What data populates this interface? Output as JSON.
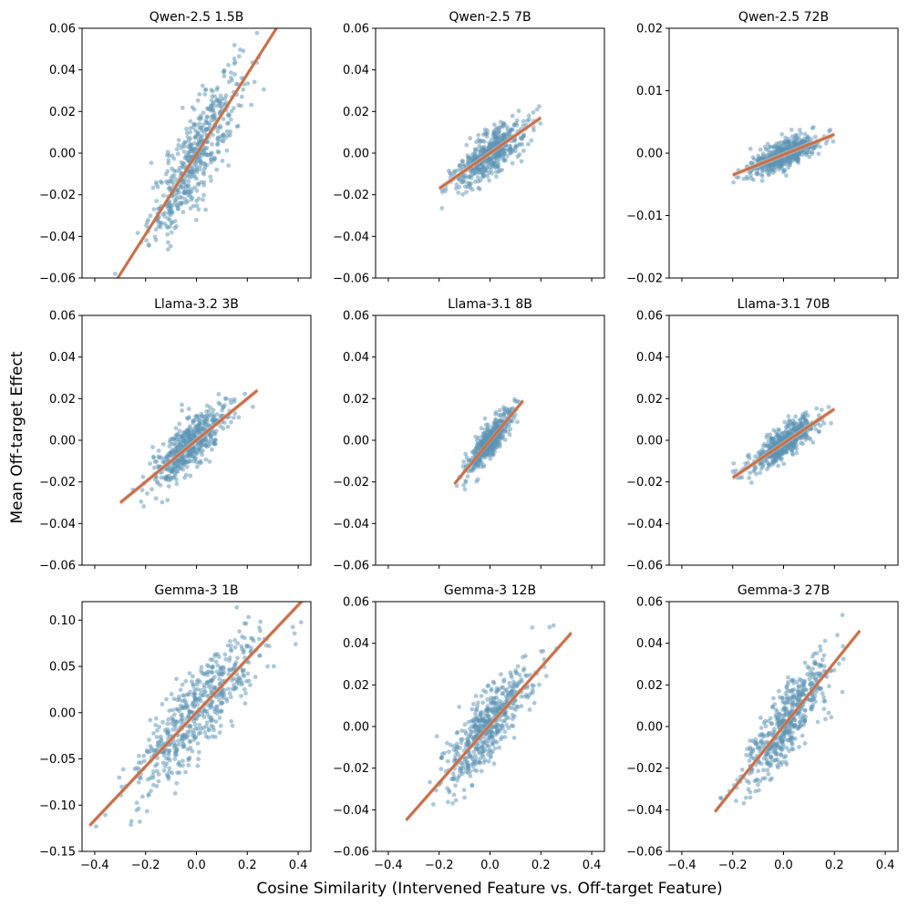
{
  "figure": {
    "xlabel": "Cosine Similarity (Intervened Feature vs. Off-target Feature)",
    "ylabel": "Mean Off-target Effect",
    "point_color": "#5b93b3",
    "line_color": "#c8704a",
    "band_color": "#e8c4b4"
  },
  "chart_data": [
    {
      "type": "scatter",
      "title": "Qwen-2.5 1.5B",
      "xlim": [
        -0.45,
        0.45
      ],
      "ylim": [
        -0.06,
        0.06
      ],
      "yticks": [
        -0.06,
        -0.04,
        -0.02,
        0.0,
        0.02,
        0.04,
        0.06
      ],
      "ytick_labels": [
        "−0.06",
        "−0.04",
        "−0.02",
        "0.00",
        "0.02",
        "0.04",
        "0.06"
      ],
      "xticks": [
        -0.4,
        -0.2,
        0.0,
        0.2,
        0.4
      ],
      "xtick_labels": [],
      "fit": {
        "x0": -0.32,
        "y0": -0.062,
        "x1": 0.32,
        "y1": 0.061
      },
      "cloud": {
        "xmin": -0.33,
        "xmax": 0.32,
        "xsd": 0.09,
        "noise": 0.011,
        "n": 520
      }
    },
    {
      "type": "scatter",
      "title": "Qwen-2.5 7B",
      "xlim": [
        -0.45,
        0.45
      ],
      "ylim": [
        -0.06,
        0.06
      ],
      "yticks": [
        -0.06,
        -0.04,
        -0.02,
        0.0,
        0.02,
        0.04,
        0.06
      ],
      "ytick_labels": [
        "−0.06",
        "−0.04",
        "−0.02",
        "0.00",
        "0.02",
        "0.04",
        "0.06"
      ],
      "xticks": [
        -0.4,
        -0.2,
        0.0,
        0.2,
        0.4
      ],
      "xtick_labels": [],
      "fit": {
        "x0": -0.2,
        "y0": -0.017,
        "x1": 0.2,
        "y1": 0.017
      },
      "cloud": {
        "xmin": -0.2,
        "xmax": 0.2,
        "xsd": 0.07,
        "noise": 0.005,
        "n": 520
      }
    },
    {
      "type": "scatter",
      "title": "Qwen-2.5 72B",
      "xlim": [
        -0.45,
        0.45
      ],
      "ylim": [
        -0.02,
        0.02
      ],
      "yticks": [
        -0.02,
        -0.01,
        0.0,
        0.01,
        0.02
      ],
      "ytick_labels": [
        "−0.02",
        "−0.01",
        "0.00",
        "0.01",
        "0.02"
      ],
      "xticks": [
        -0.4,
        -0.2,
        0.0,
        0.2,
        0.4
      ],
      "xtick_labels": [],
      "fit": {
        "x0": -0.2,
        "y0": -0.0035,
        "x1": 0.2,
        "y1": 0.003
      },
      "cloud": {
        "xmin": -0.2,
        "xmax": 0.2,
        "xsd": 0.065,
        "noise": 0.0011,
        "n": 520
      }
    },
    {
      "type": "scatter",
      "title": "Llama-3.2 3B",
      "xlim": [
        -0.45,
        0.45
      ],
      "ylim": [
        -0.06,
        0.06
      ],
      "yticks": [
        -0.06,
        -0.04,
        -0.02,
        0.0,
        0.02,
        0.04,
        0.06
      ],
      "ytick_labels": [
        "−0.06",
        "−0.04",
        "−0.02",
        "0.00",
        "0.02",
        "0.04",
        "0.06"
      ],
      "xticks": [
        -0.4,
        -0.2,
        0.0,
        0.2,
        0.4
      ],
      "xtick_labels": [],
      "fit": {
        "x0": -0.3,
        "y0": -0.03,
        "x1": 0.24,
        "y1": 0.024
      },
      "cloud": {
        "xmin": -0.3,
        "xmax": 0.24,
        "xsd": 0.075,
        "noise": 0.006,
        "n": 520
      }
    },
    {
      "type": "scatter",
      "title": "Llama-3.1 8B",
      "xlim": [
        -0.45,
        0.45
      ],
      "ylim": [
        -0.06,
        0.06
      ],
      "yticks": [
        -0.06,
        -0.04,
        -0.02,
        0.0,
        0.02,
        0.04,
        0.06
      ],
      "ytick_labels": [
        "−0.06",
        "−0.04",
        "−0.02",
        "0.00",
        "0.02",
        "0.04",
        "0.06"
      ],
      "xticks": [
        -0.4,
        -0.2,
        0.0,
        0.2,
        0.4
      ],
      "xtick_labels": [],
      "fit": {
        "x0": -0.14,
        "y0": -0.021,
        "x1": 0.13,
        "y1": 0.019
      },
      "cloud": {
        "xmin": -0.14,
        "xmax": 0.13,
        "xsd": 0.045,
        "noise": 0.004,
        "n": 480
      }
    },
    {
      "type": "scatter",
      "title": "Llama-3.1 70B",
      "xlim": [
        -0.45,
        0.45
      ],
      "ylim": [
        -0.06,
        0.06
      ],
      "yticks": [
        -0.06,
        -0.04,
        -0.02,
        0.0,
        0.02,
        0.04,
        0.06
      ],
      "ytick_labels": [
        "−0.06",
        "−0.04",
        "−0.02",
        "0.00",
        "0.02",
        "0.04",
        "0.06"
      ],
      "xticks": [
        -0.4,
        -0.2,
        0.0,
        0.2,
        0.4
      ],
      "xtick_labels": [],
      "fit": {
        "x0": -0.2,
        "y0": -0.018,
        "x1": 0.2,
        "y1": 0.015
      },
      "cloud": {
        "xmin": -0.2,
        "xmax": 0.2,
        "xsd": 0.065,
        "noise": 0.004,
        "n": 520
      }
    },
    {
      "type": "scatter",
      "title": "Gemma-3 1B",
      "xlim": [
        -0.45,
        0.45
      ],
      "ylim": [
        -0.15,
        0.12
      ],
      "yticks": [
        -0.15,
        -0.1,
        -0.05,
        0.0,
        0.05,
        0.1
      ],
      "ytick_labels": [
        "−0.15",
        "−0.10",
        "−0.05",
        "0.00",
        "0.05",
        "0.10"
      ],
      "xticks": [
        -0.4,
        -0.2,
        0.0,
        0.2,
        0.4
      ],
      "xtick_labels": [
        "−0.4",
        "−0.2",
        "0.0",
        "0.2",
        "0.4"
      ],
      "fit": {
        "x0": -0.42,
        "y0": -0.122,
        "x1": 0.42,
        "y1": 0.122
      },
      "cloud": {
        "xmin": -0.43,
        "xmax": 0.42,
        "xsd": 0.13,
        "noise": 0.024,
        "n": 560
      }
    },
    {
      "type": "scatter",
      "title": "Gemma-3 12B",
      "xlim": [
        -0.45,
        0.45
      ],
      "ylim": [
        -0.06,
        0.06
      ],
      "yticks": [
        -0.06,
        -0.04,
        -0.02,
        0.0,
        0.02,
        0.04,
        0.06
      ],
      "ytick_labels": [
        "−0.06",
        "−0.04",
        "−0.02",
        "0.00",
        "0.02",
        "0.04",
        "0.06"
      ],
      "xticks": [
        -0.4,
        -0.2,
        0.0,
        0.2,
        0.4
      ],
      "xtick_labels": [
        "−0.4",
        "−0.2",
        "0.0",
        "0.2",
        "0.4"
      ],
      "fit": {
        "x0": -0.33,
        "y0": -0.045,
        "x1": 0.32,
        "y1": 0.045
      },
      "cloud": {
        "xmin": -0.33,
        "xmax": 0.32,
        "xsd": 0.09,
        "noise": 0.008,
        "n": 540
      }
    },
    {
      "type": "scatter",
      "title": "Gemma-3 27B",
      "xlim": [
        -0.45,
        0.45
      ],
      "ylim": [
        -0.06,
        0.06
      ],
      "yticks": [
        -0.06,
        -0.04,
        -0.02,
        0.0,
        0.02,
        0.04,
        0.06
      ],
      "ytick_labels": [
        "−0.06",
        "−0.04",
        "−0.02",
        "0.00",
        "0.02",
        "0.04",
        "0.06"
      ],
      "xticks": [
        -0.4,
        -0.2,
        0.0,
        0.2,
        0.4
      ],
      "xtick_labels": [
        "−0.4",
        "−0.2",
        "0.0",
        "0.2",
        "0.4"
      ],
      "fit": {
        "x0": -0.27,
        "y0": -0.041,
        "x1": 0.3,
        "y1": 0.046
      },
      "cloud": {
        "xmin": -0.27,
        "xmax": 0.3,
        "xsd": 0.08,
        "noise": 0.008,
        "n": 540
      }
    }
  ]
}
